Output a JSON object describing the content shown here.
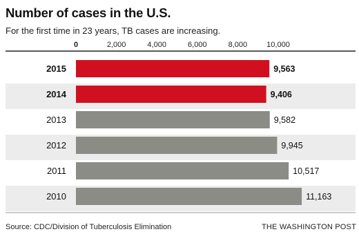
{
  "header": {
    "title": "Number of cases in the U.S.",
    "subtitle": "For the first time in 23 years, TB cases are increasing."
  },
  "footer": {
    "source": "Source: CDC/Division of Tuberculosis Elimination",
    "brand": "THE WASHINGTON POST"
  },
  "colors": {
    "highlight": "#d01020",
    "normal": "#8c8c86",
    "band": "#ececec",
    "rule": "#222222"
  },
  "chart_data": {
    "type": "bar",
    "orientation": "horizontal",
    "title": "Number of cases in the U.S.",
    "subtitle": "For the first time in 23 years, TB cases are increasing.",
    "categories": [
      "2015",
      "2014",
      "2013",
      "2012",
      "2011",
      "2010"
    ],
    "values": [
      9563,
      9406,
      9582,
      9945,
      10517,
      11163
    ],
    "value_labels": [
      "9,563",
      "9,406",
      "9,582",
      "9,945",
      "10,517",
      "11,163"
    ],
    "highlighted": [
      "2015",
      "2014"
    ],
    "xlim": [
      0,
      10000
    ],
    "xticks": [
      0,
      2000,
      4000,
      6000,
      8000,
      10000
    ],
    "xtick_labels": [
      "0",
      "2,000",
      "4,000",
      "6,000",
      "8,000",
      "10,000"
    ],
    "grid": false,
    "legend": "none"
  }
}
